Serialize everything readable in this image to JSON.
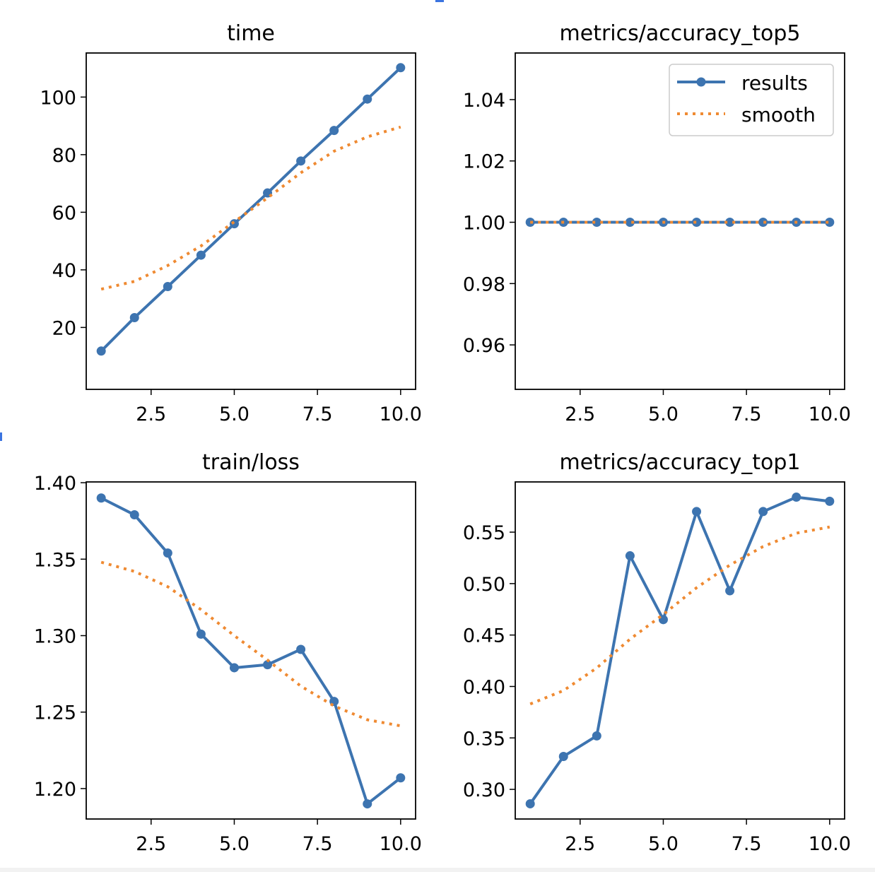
{
  "colors": {
    "results": "#3d74b0",
    "smooth": "#ef8a32",
    "axes": "#000000"
  },
  "chart_data": [
    {
      "type": "line",
      "title": "time",
      "x": [
        1,
        2,
        3,
        4,
        5,
        6,
        7,
        8,
        9,
        10
      ],
      "series": [
        {
          "name": "results",
          "values": [
            11.8,
            23.4,
            34.2,
            45.1,
            56.0,
            66.7,
            77.8,
            88.4,
            99.3,
            110.2
          ]
        },
        {
          "name": "smooth",
          "values": [
            33.3,
            36.0,
            41.5,
            48.3,
            56.7,
            65.0,
            73.7,
            81.2,
            86.2,
            89.6
          ]
        }
      ],
      "xlim": [
        0.55,
        10.45
      ],
      "ylim": [
        -1.5,
        115.3
      ],
      "xticks": [
        "2.5",
        "5.0",
        "7.5",
        "10.0"
      ],
      "xtick_values": [
        2.5,
        5,
        7.5,
        10
      ],
      "yticks": [
        "20",
        "40",
        "60",
        "80",
        "100"
      ],
      "ytick_values": [
        20,
        40,
        60,
        80,
        100
      ],
      "legend": null
    },
    {
      "type": "line",
      "title": "metrics/accuracy_top5",
      "x": [
        1,
        2,
        3,
        4,
        5,
        6,
        7,
        8,
        9,
        10
      ],
      "series": [
        {
          "name": "results",
          "values": [
            1,
            1,
            1,
            1,
            1,
            1,
            1,
            1,
            1,
            1
          ]
        },
        {
          "name": "smooth",
          "values": [
            1,
            1,
            1,
            1,
            1,
            1,
            1,
            1,
            1,
            1
          ]
        }
      ],
      "xlim": [
        0.55,
        10.45
      ],
      "ylim": [
        0.9455,
        1.0552
      ],
      "xticks": [
        "2.5",
        "5.0",
        "7.5",
        "10.0"
      ],
      "xtick_values": [
        2.5,
        5,
        7.5,
        10
      ],
      "yticks": [
        "0.96",
        "0.98",
        "1.00",
        "1.02",
        "1.04"
      ],
      "ytick_values": [
        0.96,
        0.98,
        1.0,
        1.02,
        1.04
      ],
      "legend": {
        "placement": "top-right",
        "entries": [
          "results",
          "smooth"
        ]
      }
    },
    {
      "type": "line",
      "title": "train/loss",
      "x": [
        1,
        2,
        3,
        4,
        5,
        6,
        7,
        8,
        9,
        10
      ],
      "series": [
        {
          "name": "results",
          "values": [
            1.39,
            1.379,
            1.354,
            1.301,
            1.279,
            1.281,
            1.291,
            1.257,
            1.19,
            1.207
          ]
        },
        {
          "name": "smooth",
          "values": [
            1.348,
            1.342,
            1.332,
            1.317,
            1.3,
            1.284,
            1.267,
            1.254,
            1.245,
            1.241
          ]
        }
      ],
      "xlim": [
        0.55,
        10.45
      ],
      "ylim": [
        1.1801,
        1.4005
      ],
      "xticks": [
        "2.5",
        "5.0",
        "7.5",
        "10.0"
      ],
      "xtick_values": [
        2.5,
        5,
        7.5,
        10
      ],
      "yticks": [
        "1.20",
        "1.25",
        "1.30",
        "1.35",
        "1.40"
      ],
      "ytick_values": [
        1.2,
        1.25,
        1.3,
        1.35,
        1.4
      ],
      "legend": null
    },
    {
      "type": "line",
      "title": "metrics/accuracy_top1",
      "x": [
        1,
        2,
        3,
        4,
        5,
        6,
        7,
        8,
        9,
        10
      ],
      "series": [
        {
          "name": "results",
          "values": [
            0.286,
            0.332,
            0.352,
            0.527,
            0.465,
            0.57,
            0.493,
            0.57,
            0.584,
            0.58
          ]
        },
        {
          "name": "smooth",
          "values": [
            0.383,
            0.396,
            0.418,
            0.446,
            0.47,
            0.496,
            0.518,
            0.536,
            0.549,
            0.555
          ]
        }
      ],
      "xlim": [
        0.55,
        10.45
      ],
      "ylim": [
        0.2712,
        0.5988
      ],
      "xticks": [
        "2.5",
        "5.0",
        "7.5",
        "10.0"
      ],
      "xtick_values": [
        2.5,
        5,
        7.5,
        10
      ],
      "yticks": [
        "0.30",
        "0.35",
        "0.40",
        "0.45",
        "0.50",
        "0.55"
      ],
      "ytick_values": [
        0.3,
        0.35,
        0.4,
        0.45,
        0.5,
        0.55
      ],
      "legend": null
    }
  ]
}
